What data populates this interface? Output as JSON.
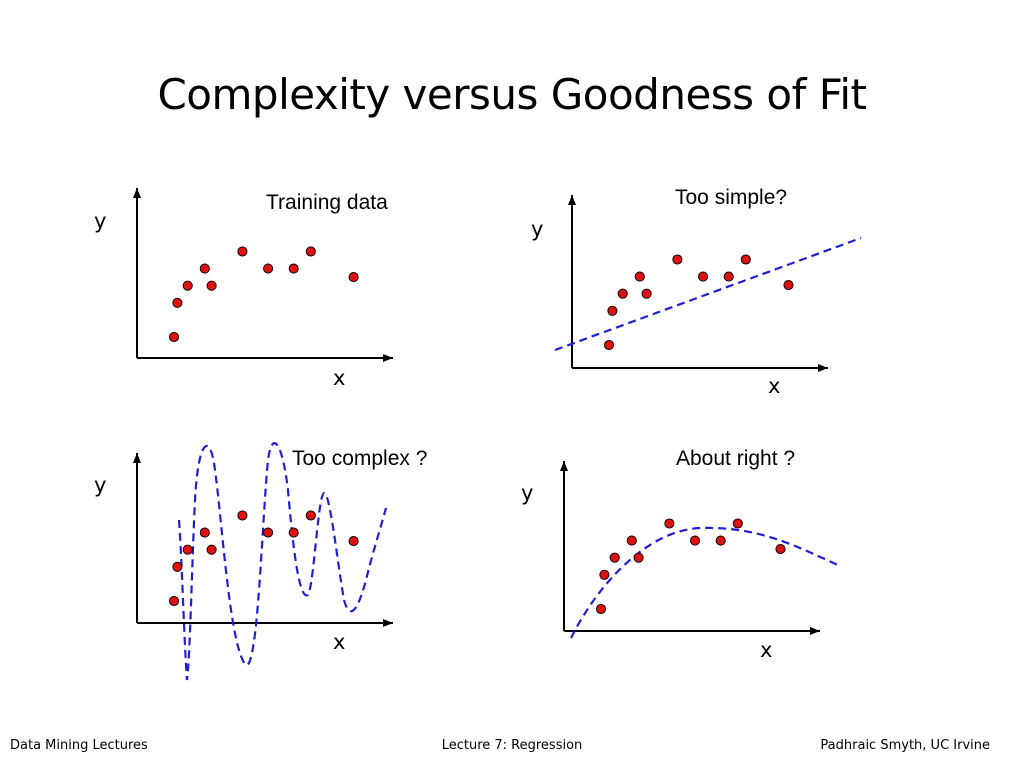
{
  "slide": {
    "title": "Complexity versus Goodness of Fit"
  },
  "colors": {
    "point": "#dd1111",
    "curve": "#1f1fd0",
    "axis": "#000000"
  },
  "panels": [
    {
      "caption": "Training data",
      "xlabel": "x",
      "ylabel": "y",
      "fit": "none"
    },
    {
      "caption": "Too simple?",
      "xlabel": "x",
      "ylabel": "y",
      "fit": "linear"
    },
    {
      "caption": "Too complex ?",
      "xlabel": "x",
      "ylabel": "y",
      "fit": "high-order"
    },
    {
      "caption": "About right ?",
      "xlabel": "x",
      "ylabel": "y",
      "fit": "quadratic"
    }
  ],
  "chart_data": {
    "type": "scatter",
    "x": [
      1,
      1.2,
      1.8,
      2.8,
      3.2,
      5,
      6.5,
      8,
      9,
      11.5
    ],
    "y": [
      1,
      3,
      4,
      5,
      4,
      6,
      5,
      5,
      6,
      4.5
    ]
  },
  "footer": {
    "left": "Data Mining Lectures",
    "center": "Lecture 7: Regression",
    "right": "Padhraic Smyth, UC Irvine"
  }
}
